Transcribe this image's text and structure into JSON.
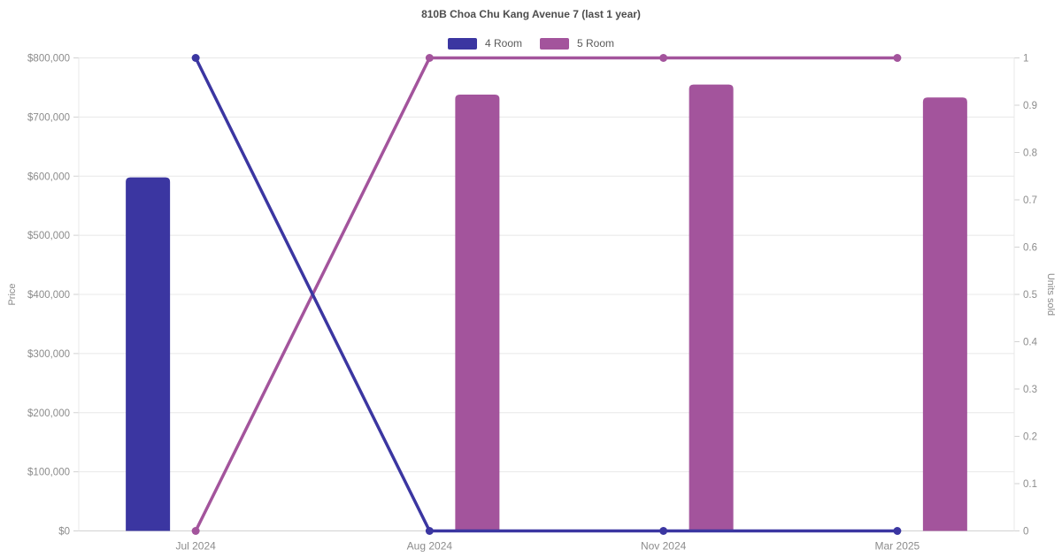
{
  "chart_data": {
    "type": "combo-bar-line",
    "title": "810B Choa Chu Kang Avenue 7 (last 1 year)",
    "categories": [
      "Jul 2024",
      "Aug 2024",
      "Nov 2024",
      "Mar 2025"
    ],
    "bar_series": [
      {
        "name": "4 Room",
        "color": "#3b36a1",
        "axis": "left",
        "values": [
          598000,
          null,
          null,
          null
        ]
      },
      {
        "name": "5 Room",
        "color": "#a3549c",
        "axis": "left",
        "values": [
          null,
          738000,
          755000,
          733000
        ]
      }
    ],
    "line_series": [
      {
        "name": "4 Room",
        "color": "#3b36a1",
        "axis": "right",
        "values": [
          1,
          0,
          0,
          0
        ]
      },
      {
        "name": "5 Room",
        "color": "#a3549c",
        "axis": "right",
        "values": [
          0,
          1,
          1,
          1
        ]
      }
    ],
    "left_axis": {
      "label": "Price",
      "min": 0,
      "max": 800000,
      "tick_step": 100000,
      "tick_labels": [
        "$0",
        "$100,000",
        "$200,000",
        "$300,000",
        "$400,000",
        "$500,000",
        "$600,000",
        "$700,000",
        "$800,000"
      ]
    },
    "right_axis": {
      "label": "Units sold",
      "min": 0,
      "max": 1,
      "tick_step": 0.1,
      "tick_labels": [
        "0",
        "0.1",
        "0.2",
        "0.3",
        "0.4",
        "0.5",
        "0.6",
        "0.7",
        "0.8",
        "0.9",
        "1"
      ]
    },
    "legend": [
      {
        "label": "4 Room",
        "color": "#3b36a1"
      },
      {
        "label": "5 Room",
        "color": "#a3549c"
      }
    ],
    "legend_position": "top-center",
    "grid": true,
    "colors": {
      "grid_line": "#e8e8e8",
      "axis_line": "#d2d2d2",
      "tick_text": "#8c8c8c",
      "title_text": "#4d4d4d"
    }
  }
}
